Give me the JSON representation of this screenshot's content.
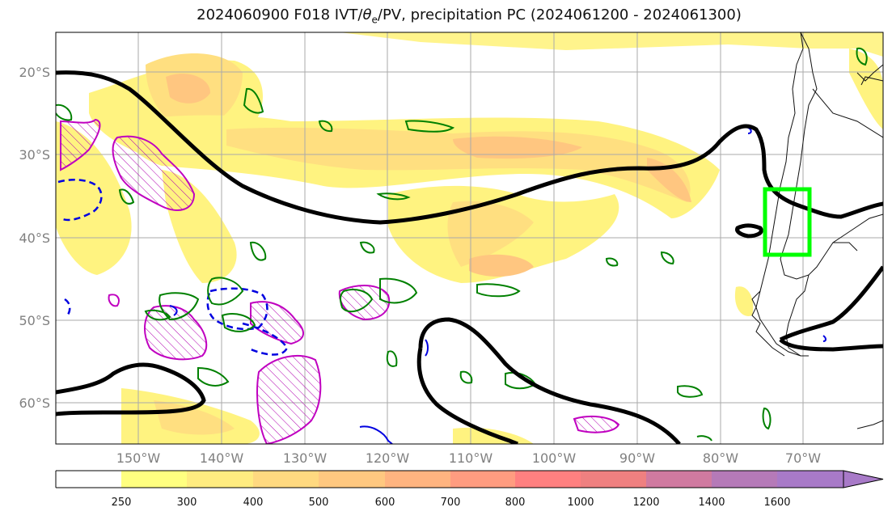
{
  "title": {
    "prefix": "2024060900 F018 IVT/",
    "theta": "θ",
    "theta_sub": "e",
    "suffix": "/PV, precipitation PC (2024061200 - 2024061300)"
  },
  "map": {
    "lon_labels": [
      "150°W",
      "140°W",
      "130°W",
      "120°W",
      "110°W",
      "100°W",
      "90°W",
      "80°W",
      "70°W"
    ],
    "lat_labels": [
      "20°S",
      "30°S",
      "40°S",
      "50°S",
      "60°S"
    ],
    "lon_values": [
      -150,
      -140,
      -130,
      -120,
      -110,
      -100,
      -90,
      -80,
      -70
    ],
    "lat_values": [
      -20,
      -30,
      -40,
      -50,
      -60
    ],
    "lon_range": [
      -160,
      -60
    ],
    "lat_range": [
      -65,
      -15
    ],
    "grid": true,
    "highlight_box": {
      "lon": [
        -74,
        -68.5
      ],
      "lat": [
        -42.2,
        -34
      ],
      "color": "#00ff00"
    }
  },
  "colorbar": {
    "labels": [
      "250",
      "300",
      "400",
      "500",
      "600",
      "700",
      "800",
      "1000",
      "1200",
      "1400",
      "1600"
    ],
    "colors": [
      "#ffffff",
      "#ffff80",
      "#ffec80",
      "#ffd980",
      "#ffc880",
      "#ffb480",
      "#ff9c80",
      "#ff8080",
      "#ef8080",
      "#d07aa0",
      "#b57ab8",
      "#a87ac8"
    ],
    "extend": "max"
  }
}
